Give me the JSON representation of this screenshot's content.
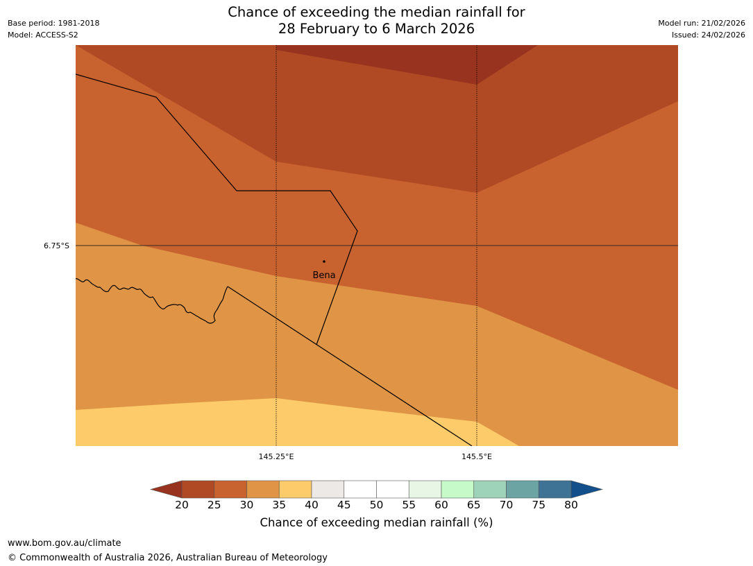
{
  "title": {
    "line1": "Chance of exceeding the median rainfall for",
    "line2": "28 February to 6 March 2026"
  },
  "meta": {
    "base_period": "Base period: 1981-2018",
    "model": "Model: ACCESS-S2",
    "model_run": "Model run: 21/02/2026",
    "issued": "Issued: 24/02/2026"
  },
  "map": {
    "lat_label": "6.75°S",
    "lon_labels": [
      "145.25°E",
      "145.5°E"
    ],
    "place": "Bena"
  },
  "legend": {
    "ticks": [
      "20",
      "25",
      "30",
      "35",
      "40",
      "45",
      "50",
      "55",
      "60",
      "65",
      "70",
      "75",
      "80"
    ],
    "under_color": "#97331e",
    "over_color": "#134f8a",
    "colors": [
      "#b04a24",
      "#c8622f",
      "#df9446",
      "#fdcb69",
      "#ede9e6",
      "#ffffff",
      "#ffffff",
      "#e8f6e6",
      "#c6fbc9",
      "#9ed2b9",
      "#6ca3a3",
      "#3e7395"
    ],
    "title": "Chance of exceeding median rainfall (%)"
  },
  "palette": {
    "c20": "#97331e",
    "c25": "#b04a24",
    "c30": "#c8622f",
    "c35": "#df9446",
    "c40": "#fdcb69"
  },
  "footer": {
    "url": "www.bom.gov.au/climate",
    "copyright": "© Commonwealth of Australia 2026, Australian Bureau of Meteorology"
  }
}
